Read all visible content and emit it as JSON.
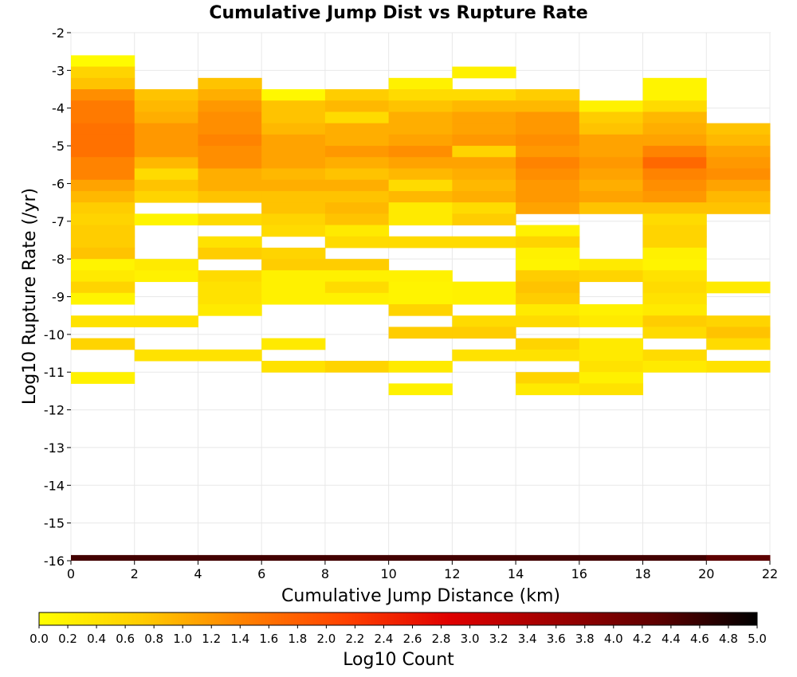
{
  "chart_data": {
    "type": "heatmap",
    "title": "Cumulative Jump Dist vs Rupture Rate",
    "xlabel": "Cumulative Jump Distance (km)",
    "ylabel": "Log10 Rupture Rate (/yr)",
    "xlim": [
      0,
      22
    ],
    "ylim": [
      -16,
      -2
    ],
    "x_ticks": [
      "0",
      "2",
      "4",
      "6",
      "8",
      "10",
      "12",
      "14",
      "16",
      "18",
      "20",
      "22"
    ],
    "y_ticks": [
      "-2",
      "-3",
      "-4",
      "-5",
      "-6",
      "-7",
      "-8",
      "-9",
      "-10",
      "-11",
      "-12",
      "-13",
      "-14",
      "-15",
      "-16"
    ],
    "x_bin_width": 2,
    "y_bin_height": 0.3,
    "grid": true,
    "colorbar": {
      "label": "Log10 Count",
      "range": [
        0,
        5
      ],
      "ticks": [
        "0.0",
        "0.2",
        "0.4",
        "0.6",
        "0.8",
        "1.0",
        "1.2",
        "1.4",
        "1.6",
        "1.8",
        "2.0",
        "2.2",
        "2.4",
        "2.6",
        "2.8",
        "3.0",
        "3.2",
        "3.4",
        "3.6",
        "3.8",
        "4.0",
        "4.2",
        "4.4",
        "4.6",
        "4.8",
        "5.0"
      ],
      "stops": [
        "#ffff00",
        "#ffcc00",
        "#ff8000",
        "#ff4000",
        "#e00000",
        "#a00000",
        "#600000",
        "#000000"
      ]
    },
    "cells": [
      {
        "x": 0,
        "vals": [
          [
            "-2.75",
            0.05
          ],
          [
            "-3.05",
            0.6
          ],
          [
            "-3.35",
            0.8
          ],
          [
            "-3.65",
            1.3
          ],
          [
            "-3.95",
            1.5
          ],
          [
            "-4.25",
            1.5
          ],
          [
            "-4.55",
            1.6
          ],
          [
            "-4.85",
            1.6
          ],
          [
            "-5.15",
            1.6
          ],
          [
            "-5.45",
            1.4
          ],
          [
            "-5.75",
            1.4
          ],
          [
            "-6.05",
            1.1
          ],
          [
            "-6.35",
            0.9
          ],
          [
            "-6.65",
            0.7
          ],
          [
            "-6.95",
            0.6
          ],
          [
            "-7.25",
            0.7
          ],
          [
            "-7.55",
            0.7
          ],
          [
            "-7.85",
            0.8
          ],
          [
            "-8.15",
            0.15
          ],
          [
            "-8.45",
            0.3
          ],
          [
            "-8.75",
            0.6
          ],
          [
            "-9.05",
            0.15
          ],
          [
            "-9.35",
            null
          ],
          [
            "-9.65",
            0.4
          ],
          [
            "-9.95",
            null
          ],
          [
            "-10.25",
            0.6
          ],
          [
            "-10.55",
            null
          ],
          [
            "-10.85",
            null
          ],
          [
            "-11.15",
            0.2
          ]
        ]
      },
      {
        "x": 2,
        "vals": [
          [
            "-3.65",
            0.8
          ],
          [
            "-3.95",
            0.9
          ],
          [
            "-4.25",
            1.0
          ],
          [
            "-4.55",
            1.2
          ],
          [
            "-4.85",
            1.2
          ],
          [
            "-5.15",
            1.2
          ],
          [
            "-5.45",
            0.9
          ],
          [
            "-5.75",
            0.5
          ],
          [
            "-6.05",
            0.8
          ],
          [
            "-6.35",
            0.6
          ],
          [
            "-6.65",
            null
          ],
          [
            "-6.95",
            0.15
          ],
          [
            "-7.25",
            null
          ],
          [
            "-7.55",
            null
          ],
          [
            "-7.85",
            null
          ],
          [
            "-8.15",
            0.3
          ],
          [
            "-8.45",
            0.2
          ],
          [
            "-8.75",
            null
          ],
          [
            "-9.05",
            null
          ],
          [
            "-9.35",
            null
          ],
          [
            "-9.65",
            0.4
          ],
          [
            "-9.95",
            null
          ],
          [
            "-10.25",
            null
          ],
          [
            "-10.55",
            0.4
          ]
        ]
      },
      {
        "x": 4,
        "vals": [
          [
            "-3.35",
            0.8
          ],
          [
            "-3.65",
            1.0
          ],
          [
            "-3.95",
            1.2
          ],
          [
            "-4.25",
            1.3
          ],
          [
            "-4.55",
            1.3
          ],
          [
            "-4.85",
            1.4
          ],
          [
            "-5.15",
            1.3
          ],
          [
            "-5.45",
            1.3
          ],
          [
            "-5.75",
            1.0
          ],
          [
            "-6.05",
            1.0
          ],
          [
            "-6.35",
            0.8
          ],
          [
            "-6.65",
            null
          ],
          [
            "-6.95",
            0.5
          ],
          [
            "-7.25",
            null
          ],
          [
            "-7.55",
            0.4
          ],
          [
            "-7.85",
            0.7
          ],
          [
            "-8.15",
            null
          ],
          [
            "-8.45",
            0.5
          ],
          [
            "-8.75",
            0.4
          ],
          [
            "-9.05",
            0.4
          ],
          [
            "-9.35",
            0.3
          ],
          [
            "-9.65",
            null
          ],
          [
            "-9.95",
            null
          ],
          [
            "-10.25",
            null
          ],
          [
            "-10.55",
            0.4
          ]
        ]
      },
      {
        "x": 6,
        "vals": [
          [
            "-3.65",
            0.1
          ],
          [
            "-3.95",
            0.8
          ],
          [
            "-4.25",
            0.8
          ],
          [
            "-4.55",
            0.9
          ],
          [
            "-4.85",
            1.1
          ],
          [
            "-5.15",
            1.1
          ],
          [
            "-5.45",
            1.1
          ],
          [
            "-5.75",
            0.9
          ],
          [
            "-6.05",
            1.0
          ],
          [
            "-6.35",
            0.8
          ],
          [
            "-6.65",
            0.8
          ],
          [
            "-6.95",
            0.6
          ],
          [
            "-7.25",
            0.5
          ],
          [
            "-7.55",
            null
          ],
          [
            "-7.85",
            0.6
          ],
          [
            "-8.15",
            0.7
          ],
          [
            "-8.45",
            0.2
          ],
          [
            "-8.75",
            0.2
          ],
          [
            "-9.05",
            0.2
          ],
          [
            "-9.35",
            null
          ],
          [
            "-9.65",
            null
          ],
          [
            "-9.95",
            null
          ],
          [
            "-10.25",
            0.3
          ],
          [
            "-10.55",
            null
          ],
          [
            "-10.85",
            0.4
          ]
        ]
      },
      {
        "x": 8,
        "vals": [
          [
            "-3.65",
            0.7
          ],
          [
            "-3.95",
            0.9
          ],
          [
            "-4.25",
            0.5
          ],
          [
            "-4.55",
            1.0
          ],
          [
            "-4.85",
            1.0
          ],
          [
            "-5.15",
            1.2
          ],
          [
            "-5.45",
            1.0
          ],
          [
            "-5.75",
            0.8
          ],
          [
            "-6.05",
            1.0
          ],
          [
            "-6.35",
            0.8
          ],
          [
            "-6.65",
            0.9
          ],
          [
            "-6.95",
            0.8
          ],
          [
            "-7.25",
            0.3
          ],
          [
            "-7.55",
            0.5
          ],
          [
            "-7.85",
            null
          ],
          [
            "-8.15",
            0.7
          ],
          [
            "-8.45",
            0.2
          ],
          [
            "-8.75",
            0.5
          ],
          [
            "-9.05",
            0.2
          ],
          [
            "-9.35",
            null
          ],
          [
            "-9.65",
            null
          ],
          [
            "-9.95",
            null
          ],
          [
            "-10.25",
            null
          ],
          [
            "-10.55",
            null
          ],
          [
            "-10.85",
            0.6
          ]
        ]
      },
      {
        "x": 10,
        "vals": [
          [
            "-3.35",
            0.2
          ],
          [
            "-3.65",
            0.5
          ],
          [
            "-3.95",
            0.8
          ],
          [
            "-4.25",
            1.0
          ],
          [
            "-4.55",
            1.0
          ],
          [
            "-4.85",
            1.1
          ],
          [
            "-5.15",
            1.3
          ],
          [
            "-5.45",
            1.1
          ],
          [
            "-5.75",
            0.9
          ],
          [
            "-6.05",
            0.5
          ],
          [
            "-6.35",
            0.9
          ],
          [
            "-6.65",
            0.3
          ],
          [
            "-6.95",
            0.3
          ],
          [
            "-7.25",
            null
          ],
          [
            "-7.55",
            0.5
          ],
          [
            "-7.85",
            null
          ],
          [
            "-8.15",
            null
          ],
          [
            "-8.45",
            0.2
          ],
          [
            "-8.75",
            0.15
          ],
          [
            "-9.05",
            0.15
          ],
          [
            "-9.35",
            0.6
          ],
          [
            "-9.65",
            null
          ],
          [
            "-9.95",
            0.7
          ],
          [
            "-10.25",
            null
          ],
          [
            "-10.55",
            null
          ],
          [
            "-10.85",
            0.3
          ],
          [
            "-11.15",
            null
          ],
          [
            "-11.45",
            0.2
          ]
        ]
      },
      {
        "x": 12,
        "vals": [
          [
            "-3.05",
            0.2
          ],
          [
            "-3.35",
            null
          ],
          [
            "-3.65",
            0.5
          ],
          [
            "-3.95",
            0.9
          ],
          [
            "-4.25",
            1.1
          ],
          [
            "-4.55",
            1.1
          ],
          [
            "-4.85",
            1.2
          ],
          [
            "-5.15",
            0.6
          ],
          [
            "-5.45",
            1.1
          ],
          [
            "-5.75",
            1.0
          ],
          [
            "-6.05",
            0.9
          ],
          [
            "-6.35",
            1.0
          ],
          [
            "-6.65",
            0.5
          ],
          [
            "-6.95",
            0.7
          ],
          [
            "-7.25",
            null
          ],
          [
            "-7.55",
            0.5
          ],
          [
            "-7.85",
            null
          ],
          [
            "-8.15",
            null
          ],
          [
            "-8.45",
            null
          ],
          [
            "-8.75",
            0.2
          ],
          [
            "-9.05",
            0.2
          ],
          [
            "-9.35",
            null
          ],
          [
            "-9.65",
            0.5
          ],
          [
            "-9.95",
            0.7
          ],
          [
            "-10.25",
            null
          ],
          [
            "-10.55",
            0.4
          ]
        ]
      },
      {
        "x": 14,
        "vals": [
          [
            "-3.65",
            0.7
          ],
          [
            "-3.95",
            0.9
          ],
          [
            "-4.25",
            1.2
          ],
          [
            "-4.55",
            1.2
          ],
          [
            "-4.85",
            1.3
          ],
          [
            "-5.15",
            1.2
          ],
          [
            "-5.45",
            1.4
          ],
          [
            "-5.75",
            1.3
          ],
          [
            "-6.05",
            1.2
          ],
          [
            "-6.35",
            1.2
          ],
          [
            "-6.65",
            1.1
          ],
          [
            "-6.95",
            null
          ],
          [
            "-7.25",
            0.2
          ],
          [
            "-7.55",
            0.6
          ],
          [
            "-7.85",
            0.2
          ],
          [
            "-8.15",
            0.15
          ],
          [
            "-8.45",
            0.7
          ],
          [
            "-8.75",
            0.8
          ],
          [
            "-9.05",
            0.7
          ],
          [
            "-9.35",
            0.3
          ],
          [
            "-9.65",
            0.5
          ],
          [
            "-9.95",
            null
          ],
          [
            "-10.25",
            0.6
          ],
          [
            "-10.55",
            0.4
          ],
          [
            "-10.85",
            null
          ],
          [
            "-11.15",
            0.6
          ],
          [
            "-11.45",
            0.3
          ]
        ]
      },
      {
        "x": 16,
        "vals": [
          [
            "-3.95",
            0.2
          ],
          [
            "-4.25",
            0.7
          ],
          [
            "-4.55",
            0.8
          ],
          [
            "-4.85",
            1.1
          ],
          [
            "-5.15",
            1.1
          ],
          [
            "-5.45",
            1.2
          ],
          [
            "-5.75",
            1.1
          ],
          [
            "-6.05",
            1.0
          ],
          [
            "-6.35",
            1.1
          ],
          [
            "-6.65",
            0.8
          ],
          [
            "-6.95",
            null
          ],
          [
            "-7.25",
            null
          ],
          [
            "-7.55",
            null
          ],
          [
            "-7.85",
            null
          ],
          [
            "-8.15",
            0.3
          ],
          [
            "-8.45",
            0.6
          ],
          [
            "-8.75",
            null
          ],
          [
            "-9.05",
            null
          ],
          [
            "-9.35",
            0.2
          ],
          [
            "-9.65",
            0.3
          ],
          [
            "-9.95",
            null
          ],
          [
            "-10.25",
            0.3
          ],
          [
            "-10.55",
            0.3
          ],
          [
            "-10.85",
            0.4
          ],
          [
            "-11.15",
            0.2
          ],
          [
            "-11.45",
            0.4
          ]
        ]
      },
      {
        "x": 18,
        "vals": [
          [
            "-3.35",
            0.15
          ],
          [
            "-3.65",
            0.15
          ],
          [
            "-3.95",
            0.5
          ],
          [
            "-4.25",
            0.9
          ],
          [
            "-4.55",
            1.0
          ],
          [
            "-4.85",
            1.1
          ],
          [
            "-5.15",
            1.4
          ],
          [
            "-5.45",
            1.7
          ],
          [
            "-5.75",
            1.4
          ],
          [
            "-6.05",
            1.3
          ],
          [
            "-6.35",
            1.2
          ],
          [
            "-6.65",
            0.8
          ],
          [
            "-6.95",
            0.5
          ],
          [
            "-7.25",
            0.6
          ],
          [
            "-7.55",
            0.6
          ],
          [
            "-7.85",
            0.2
          ],
          [
            "-8.15",
            0.15
          ],
          [
            "-8.45",
            0.4
          ],
          [
            "-8.75",
            0.5
          ],
          [
            "-9.05",
            0.4
          ],
          [
            "-9.35",
            0.3
          ],
          [
            "-9.65",
            0.7
          ],
          [
            "-9.95",
            0.5
          ],
          [
            "-10.25",
            null
          ],
          [
            "-10.55",
            0.5
          ],
          [
            "-10.85",
            0.3
          ]
        ]
      },
      {
        "x": 20,
        "vals": [
          [
            "-4.55",
            0.8
          ],
          [
            "-4.85",
            0.9
          ],
          [
            "-5.15",
            1.1
          ],
          [
            "-5.45",
            1.2
          ],
          [
            "-5.75",
            1.3
          ],
          [
            "-6.05",
            1.1
          ],
          [
            "-6.35",
            0.9
          ],
          [
            "-6.65",
            0.8
          ],
          [
            "-6.95",
            null
          ],
          [
            "-7.25",
            null
          ],
          [
            "-7.55",
            null
          ],
          [
            "-7.85",
            null
          ],
          [
            "-8.15",
            null
          ],
          [
            "-8.45",
            null
          ],
          [
            "-8.75",
            0.3
          ],
          [
            "-9.05",
            null
          ],
          [
            "-9.35",
            null
          ],
          [
            "-9.65",
            0.6
          ],
          [
            "-9.95",
            0.8
          ],
          [
            "-10.25",
            0.5
          ],
          [
            "-10.55",
            null
          ],
          [
            "-10.85",
            0.4
          ]
        ]
      }
    ],
    "bottom_row": {
      "y": -16,
      "vals": [
        4.5,
        4.5,
        4.5,
        4.5,
        4.5,
        4.5,
        4.5,
        4.5,
        4.5,
        4.5,
        4.3
      ]
    }
  }
}
